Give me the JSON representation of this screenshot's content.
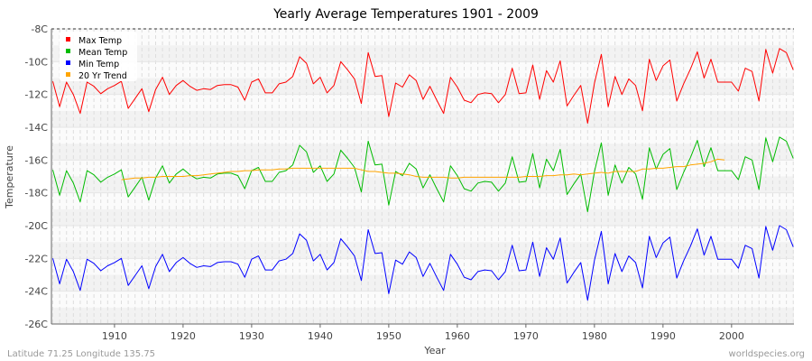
{
  "chart_data": {
    "type": "line",
    "title": "Yearly Average Temperatures 1901 - 2009",
    "xlabel": "Year",
    "ylabel": "Temperature",
    "x_start": 1901,
    "x_end": 2009,
    "xlim": [
      1901,
      2009
    ],
    "ylim": [
      -26,
      -8
    ],
    "yticks": [
      -8,
      -10,
      -12,
      -14,
      -16,
      -18,
      -20,
      -22,
      -24,
      -26
    ],
    "ytick_labels": [
      "-8C",
      "-10C",
      "-12C",
      "-14C",
      "-16C",
      "-18C",
      "-20C",
      "-22C",
      "-24C",
      "-26C"
    ],
    "xticks": [
      1910,
      1920,
      1930,
      1940,
      1950,
      1960,
      1970,
      1980,
      1990,
      2000
    ],
    "xtick_labels": [
      "1910",
      "1920",
      "1930",
      "1940",
      "1950",
      "1960",
      "1970",
      "1980",
      "1990",
      "2000"
    ],
    "grid": true,
    "legend_position": "top-left",
    "series": [
      {
        "name": "Max Temp",
        "color": "#ff0000",
        "start": 1901,
        "values": [
          -11.2,
          -12.75,
          -11.25,
          -12.0,
          -13.15,
          -11.25,
          -11.5,
          -11.95,
          -11.65,
          -11.45,
          -11.2,
          -12.85,
          -12.25,
          -11.65,
          -13.05,
          -11.7,
          -10.95,
          -12.0,
          -11.45,
          -11.15,
          -11.5,
          -11.75,
          -11.65,
          -11.7,
          -11.45,
          -11.4,
          -11.4,
          -11.55,
          -12.35,
          -11.25,
          -11.05,
          -11.9,
          -11.9,
          -11.35,
          -11.25,
          -10.9,
          -9.7,
          -10.1,
          -11.35,
          -10.95,
          -11.9,
          -11.45,
          -10.0,
          -10.5,
          -11.05,
          -12.55,
          -9.45,
          -10.9,
          -10.85,
          -13.35,
          -11.3,
          -11.55,
          -10.8,
          -11.15,
          -12.3,
          -11.5,
          -12.35,
          -13.15,
          -10.95,
          -11.55,
          -12.35,
          -12.5,
          -12.0,
          -11.9,
          -11.95,
          -12.5,
          -12.0,
          -10.4,
          -11.95,
          -11.9,
          -10.2,
          -12.3,
          -10.55,
          -11.25,
          -9.95,
          -12.7,
          -12.05,
          -11.45,
          -13.75,
          -11.3,
          -9.55,
          -12.75,
          -10.9,
          -12.0,
          -11.05,
          -11.45,
          -13.0,
          -9.85,
          -11.15,
          -10.25,
          -9.9,
          -12.4,
          -11.35,
          -10.45,
          -9.4,
          -11.0,
          -9.85,
          -11.25,
          -11.25,
          -11.25,
          -11.8,
          -10.4,
          -10.6,
          -12.4,
          -9.25,
          -10.7,
          -9.2,
          -9.45,
          -10.5
        ]
      },
      {
        "name": "Mean Temp",
        "color": "#00bb00",
        "start": 1901,
        "values": [
          -16.6,
          -18.15,
          -16.65,
          -17.4,
          -18.55,
          -16.65,
          -16.9,
          -17.35,
          -17.05,
          -16.85,
          -16.6,
          -18.25,
          -17.65,
          -17.05,
          -18.45,
          -17.1,
          -16.35,
          -17.4,
          -16.85,
          -16.55,
          -16.9,
          -17.15,
          -17.05,
          -17.1,
          -16.85,
          -16.8,
          -16.8,
          -16.95,
          -17.75,
          -16.65,
          -16.45,
          -17.3,
          -17.3,
          -16.75,
          -16.65,
          -16.3,
          -15.1,
          -15.5,
          -16.75,
          -16.35,
          -17.3,
          -16.85,
          -15.4,
          -15.9,
          -16.45,
          -17.95,
          -14.85,
          -16.3,
          -16.25,
          -18.75,
          -16.7,
          -16.95,
          -16.2,
          -16.55,
          -17.7,
          -16.9,
          -17.75,
          -18.55,
          -16.35,
          -16.95,
          -17.75,
          -17.9,
          -17.4,
          -17.3,
          -17.35,
          -17.9,
          -17.4,
          -15.8,
          -17.35,
          -17.3,
          -15.6,
          -17.7,
          -15.95,
          -16.65,
          -15.35,
          -18.1,
          -17.45,
          -16.85,
          -19.15,
          -16.7,
          -14.95,
          -18.15,
          -16.3,
          -17.4,
          -16.45,
          -16.85,
          -18.4,
          -15.25,
          -16.55,
          -15.65,
          -15.3,
          -17.8,
          -16.75,
          -15.85,
          -14.8,
          -16.4,
          -15.25,
          -16.65,
          -16.65,
          -16.65,
          -17.2,
          -15.8,
          -16.0,
          -17.8,
          -14.65,
          -16.1,
          -14.6,
          -14.85,
          -15.9
        ]
      },
      {
        "name": "Min Temp",
        "color": "#0000ff",
        "start": 1901,
        "values": [
          -22.0,
          -23.55,
          -22.05,
          -22.8,
          -23.95,
          -22.05,
          -22.3,
          -22.75,
          -22.45,
          -22.25,
          -22.0,
          -23.65,
          -23.05,
          -22.45,
          -23.85,
          -22.5,
          -21.75,
          -22.8,
          -22.25,
          -21.95,
          -22.3,
          -22.55,
          -22.45,
          -22.5,
          -22.25,
          -22.2,
          -22.2,
          -22.35,
          -23.15,
          -22.05,
          -21.85,
          -22.7,
          -22.7,
          -22.15,
          -22.05,
          -21.7,
          -20.5,
          -20.9,
          -22.15,
          -21.75,
          -22.7,
          -22.25,
          -20.8,
          -21.3,
          -21.85,
          -23.35,
          -20.25,
          -21.7,
          -21.65,
          -24.15,
          -22.1,
          -22.35,
          -21.6,
          -21.95,
          -23.1,
          -22.3,
          -23.15,
          -23.95,
          -21.75,
          -22.35,
          -23.15,
          -23.3,
          -22.8,
          -22.7,
          -22.75,
          -23.3,
          -22.8,
          -21.2,
          -22.75,
          -22.7,
          -21.0,
          -23.1,
          -21.35,
          -22.05,
          -20.75,
          -23.5,
          -22.85,
          -22.25,
          -24.55,
          -22.1,
          -20.35,
          -23.55,
          -21.7,
          -22.8,
          -21.85,
          -22.25,
          -23.8,
          -20.65,
          -21.95,
          -21.05,
          -20.7,
          -23.2,
          -22.15,
          -21.25,
          -20.2,
          -21.8,
          -20.65,
          -22.05,
          -22.05,
          -22.05,
          -22.6,
          -21.2,
          -21.4,
          -23.2,
          -20.05,
          -21.5,
          -20.0,
          -20.25,
          -21.3
        ]
      },
      {
        "name": "20 Yr Trend",
        "color": "#ffa500",
        "start": 1911,
        "values": [
          -17.2,
          -17.15,
          -17.1,
          -17.1,
          -17.05,
          -17.05,
          -17.0,
          -17.0,
          -17.0,
          -17.0,
          -16.95,
          -16.95,
          -16.9,
          -16.85,
          -16.8,
          -16.75,
          -16.7,
          -16.7,
          -16.65,
          -16.65,
          -16.6,
          -16.6,
          -16.6,
          -16.55,
          -16.55,
          -16.5,
          -16.5,
          -16.5,
          -16.5,
          -16.5,
          -16.5,
          -16.5,
          -16.5,
          -16.5,
          -16.5,
          -16.6,
          -16.7,
          -16.7,
          -16.75,
          -16.8,
          -16.8,
          -16.85,
          -16.9,
          -17.0,
          -17.05,
          -17.05,
          -17.05,
          -17.05,
          -17.1,
          -17.1,
          -17.05,
          -17.05,
          -17.05,
          -17.05,
          -17.05,
          -17.05,
          -17.05,
          -17.05,
          -17.05,
          -17.0,
          -17.0,
          -17.0,
          -16.95,
          -16.95,
          -16.9,
          -16.9,
          -16.85,
          -16.9,
          -16.85,
          -16.8,
          -16.75,
          -16.8,
          -16.7,
          -16.7,
          -16.7,
          -16.7,
          -16.55,
          -16.55,
          -16.5,
          -16.5,
          -16.45,
          -16.4,
          -16.4,
          -16.3,
          -16.25,
          -16.2,
          -16.1,
          -15.95,
          -16.0
        ]
      }
    ]
  },
  "footer": {
    "location": "Latitude 71.25 Longitude 135.75",
    "source": "worldspecies.org"
  }
}
